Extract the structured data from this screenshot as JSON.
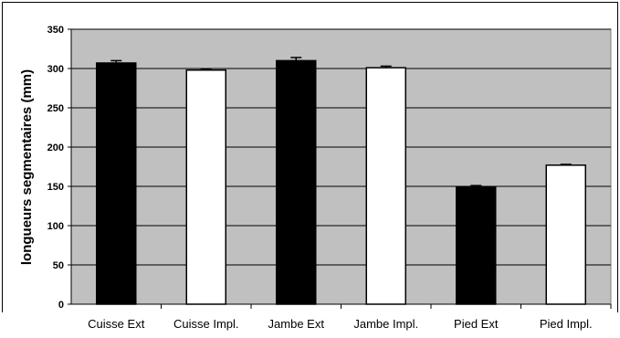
{
  "chart_data": {
    "type": "bar",
    "title": "",
    "xlabel": "",
    "ylabel": "longueurs segmentaires (mm)",
    "ylim": [
      0,
      350
    ],
    "yticks": [
      0,
      50,
      100,
      150,
      200,
      250,
      300,
      350
    ],
    "grid": true,
    "legend": "none",
    "categories": [
      "Cuisse Ext",
      "Cuisse Impl.",
      "Jambe Ext",
      "Jambe Impl.",
      "Pied Ext",
      "Pied Impl."
    ],
    "values": [
      307,
      298,
      310,
      301,
      149,
      177
    ],
    "errors": [
      3,
      1,
      4,
      2,
      2,
      1
    ],
    "bar_colors": [
      "#000000",
      "#ffffff",
      "#000000",
      "#ffffff",
      "#000000",
      "#ffffff"
    ],
    "plot_background": "#c0c0c0"
  }
}
